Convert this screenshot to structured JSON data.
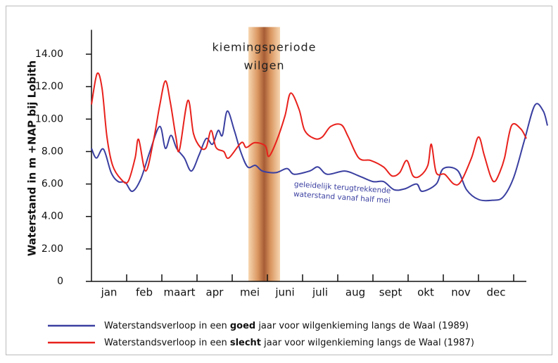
{
  "chart_data": {
    "type": "line",
    "y_label": "Waterstand in m +NAP bij Lobith",
    "categories": [
      "jan",
      "feb",
      "maart",
      "apr",
      "mei",
      "juni",
      "juli",
      "aug",
      "sept",
      "okt",
      "nov",
      "dec"
    ],
    "xlim": [
      0,
      13
    ],
    "xticks": [
      1,
      2,
      3,
      4,
      5,
      6,
      7,
      8,
      9,
      10,
      11,
      12
    ],
    "ylim": [
      0,
      15.5
    ],
    "yticks": [
      0,
      {
        "value": 2,
        "label": "2.00"
      },
      {
        "value": 4,
        "label": "4.00"
      },
      {
        "value": 6,
        "label": "6.00"
      },
      {
        "value": 8,
        "label": "8.00"
      },
      {
        "value": 10,
        "label": "10.00"
      },
      {
        "value": 12,
        "label": "12.00"
      },
      {
        "value": 14,
        "label": "14.00"
      }
    ],
    "span": {
      "x": [
        4.46,
        5.36
      ],
      "label": [
        "kiemingsperiode",
        "wilgen"
      ]
    },
    "annotation": {
      "series": 0,
      "text": [
        "geleidelijk terugtrekkende",
        "waterstand vanaf half mei"
      ]
    },
    "series": [
      {
        "name": "Waterstandsverloop in een goed jaar voor wilgenkieming langs de Waal (1989)",
        "bold": "goed",
        "color": "#3a3fa0",
        "x": [
          0,
          0.14,
          0.34,
          0.56,
          0.76,
          0.96,
          1.16,
          1.4,
          1.66,
          1.94,
          2.1,
          2.26,
          2.42,
          2.64,
          2.84,
          3.06,
          3.26,
          3.44,
          3.6,
          3.72,
          3.86,
          4.06,
          4.24,
          4.44,
          4.66,
          4.86,
          5.24,
          5.56,
          5.76,
          6.2,
          6.44,
          6.7,
          7.2,
          7.6,
          8.0,
          8.3,
          8.6,
          8.9,
          9.24,
          9.4,
          9.8,
          10.0,
          10.4,
          10.66,
          11.0,
          11.4,
          11.7,
          12.0,
          12.3,
          12.6,
          12.84,
          12.96
        ],
        "values": [
          8.2,
          7.6,
          8.15,
          6.7,
          6.15,
          6.1,
          5.55,
          6.3,
          8.0,
          9.55,
          8.2,
          9.0,
          8.2,
          7.6,
          6.8,
          7.8,
          8.8,
          8.45,
          9.3,
          9.0,
          10.5,
          9.3,
          8.0,
          7.05,
          7.15,
          6.8,
          6.7,
          6.95,
          6.6,
          6.8,
          7.05,
          6.6,
          6.8,
          6.5,
          6.15,
          6.15,
          5.65,
          5.7,
          6.0,
          5.55,
          6.0,
          6.95,
          6.85,
          5.65,
          5.05,
          5.0,
          5.2,
          6.4,
          8.65,
          10.85,
          10.5,
          9.6
        ]
      },
      {
        "name": "Waterstandsverloop in een slecht jaar voor wilgenkieming langs de Waal (1987)",
        "bold": "slecht",
        "color": "#e8211c",
        "x": [
          0,
          0.16,
          0.3,
          0.44,
          0.6,
          0.84,
          1.04,
          1.24,
          1.34,
          1.54,
          1.76,
          1.94,
          2.1,
          2.24,
          2.4,
          2.5,
          2.74,
          2.9,
          3.1,
          3.26,
          3.4,
          3.54,
          3.76,
          3.9,
          4.26,
          4.4,
          4.64,
          4.94,
          5.04,
          5.26,
          5.5,
          5.66,
          5.9,
          6.06,
          6.34,
          6.56,
          6.8,
          7.1,
          7.3,
          7.6,
          7.94,
          8.3,
          8.54,
          8.76,
          8.96,
          9.14,
          9.34,
          9.56,
          9.66,
          9.8,
          10.04,
          10.3,
          10.5,
          10.8,
          11.0,
          11.16,
          11.34,
          11.46,
          11.6,
          11.74,
          11.94,
          12.2,
          12.36
        ],
        "values": [
          10.9,
          12.8,
          11.9,
          8.9,
          7.15,
          6.3,
          6.15,
          7.6,
          8.75,
          6.8,
          8.65,
          10.85,
          12.35,
          11.05,
          8.9,
          8.1,
          11.15,
          9.1,
          8.25,
          8.25,
          9.3,
          8.25,
          8.0,
          7.6,
          8.55,
          8.25,
          8.55,
          8.35,
          7.7,
          8.65,
          10.2,
          11.6,
          10.6,
          9.3,
          8.8,
          8.9,
          9.55,
          9.65,
          8.9,
          7.6,
          7.45,
          7.05,
          6.5,
          6.7,
          7.45,
          6.5,
          6.5,
          7.15,
          8.45,
          6.7,
          6.6,
          6.0,
          6.15,
          7.6,
          8.9,
          7.8,
          6.5,
          6.15,
          6.7,
          7.6,
          9.6,
          9.4,
          8.8
        ]
      }
    ]
  }
}
